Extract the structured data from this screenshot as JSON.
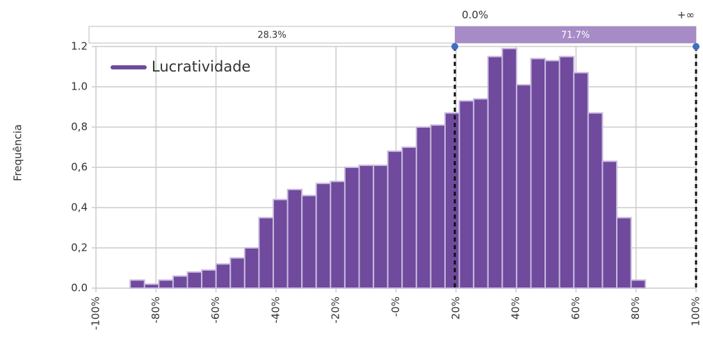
{
  "chart_data": {
    "type": "histogram",
    "ylabel": "Frequência",
    "series": [
      {
        "name": "Lucratividade",
        "color": "#6f4a9d",
        "bins": [
          -88.6,
          -83.83,
          -79.06,
          -74.29,
          -69.52,
          -64.75,
          -59.98,
          -55.21,
          -50.44,
          -45.67,
          -40.9,
          -36.13,
          -31.36,
          -26.59,
          -21.82,
          -17.05,
          -12.28,
          -7.51,
          -2.74,
          2.03,
          6.8,
          11.57,
          16.34,
          21.11,
          25.88,
          30.65,
          35.42,
          40.19,
          44.96,
          49.73,
          54.5,
          59.27,
          64.04,
          68.81,
          73.58,
          78.35,
          83.12
        ],
        "values": [
          0.04,
          0.02,
          0.04,
          0.06,
          0.08,
          0.09,
          0.12,
          0.15,
          0.2,
          0.35,
          0.44,
          0.49,
          0.46,
          0.52,
          0.53,
          0.6,
          0.61,
          0.61,
          0.68,
          0.7,
          0.8,
          0.81,
          0.87,
          0.93,
          0.94,
          1.15,
          1.19,
          1.01,
          1.14,
          1.13,
          1.15,
          1.07,
          0.87,
          0.63,
          0.35,
          0.04
        ]
      }
    ],
    "xlim": [
      -100,
      100
    ],
    "xticks": [
      {
        "value": -100,
        "label": "-100%"
      },
      {
        "value": -80,
        "label": "-80%"
      },
      {
        "value": -60,
        "label": "-60%"
      },
      {
        "value": -40,
        "label": "-40%"
      },
      {
        "value": -20,
        "label": "-20%"
      },
      {
        "value": 0,
        "label": "-0%"
      },
      {
        "value": 20,
        "label": "20%"
      },
      {
        "value": 40,
        "label": "40%"
      },
      {
        "value": 60,
        "label": "60%"
      },
      {
        "value": 80,
        "label": "80%"
      },
      {
        "value": 100,
        "label": "100%"
      }
    ],
    "ylim": [
      0,
      1.2
    ],
    "yticks": [
      {
        "value": 0,
        "label": "0.0"
      },
      {
        "value": 0.2,
        "label": "0,2"
      },
      {
        "value": 0.4,
        "label": "0,4"
      },
      {
        "value": 0.6,
        "label": "0,6"
      },
      {
        "value": 0.8,
        "label": "0,8"
      },
      {
        "value": 1.0,
        "label": "1.0"
      },
      1.2
    ],
    "grid": true,
    "threshold": {
      "x": 19.6,
      "x_label": "0.0%",
      "end_label": "+∞",
      "below_label": "28.3%",
      "above_label": "71.7%",
      "color": "#a68bc7"
    }
  }
}
